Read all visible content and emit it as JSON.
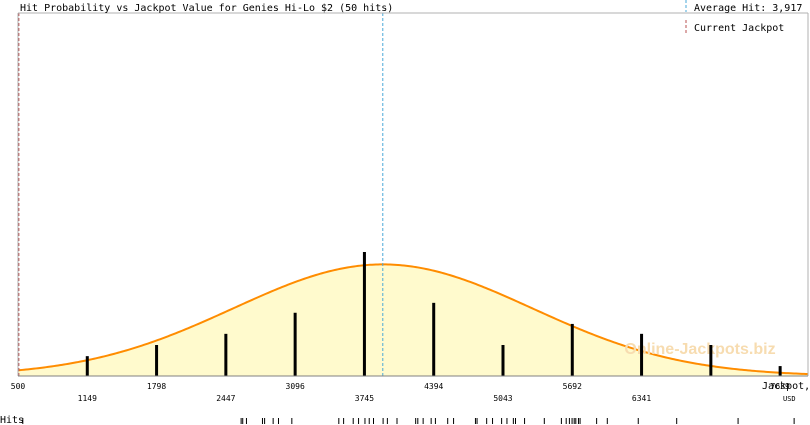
{
  "chart_data": {
    "type": "bar",
    "title": "Hit Probability vs Jackpot Value for Genies Hi-Lo $2 (50 hits)",
    "xlabel": "Jackpot,",
    "xlabel_unit": "USD",
    "x_axis_row_label": "Hits",
    "xlim": [
      500,
      7900
    ],
    "x_ticks_top": [
      500,
      1798,
      3096,
      4394,
      5692,
      7639
    ],
    "x_ticks_bottom": [
      1149,
      2447,
      3745,
      5043,
      6341
    ],
    "bars": [
      {
        "x": 1149,
        "value": 0.16
      },
      {
        "x": 1798,
        "value": 0.25
      },
      {
        "x": 2447,
        "value": 0.34
      },
      {
        "x": 3096,
        "value": 0.51
      },
      {
        "x": 3745,
        "value": 1.0
      },
      {
        "x": 4394,
        "value": 0.59
      },
      {
        "x": 5043,
        "value": 0.25
      },
      {
        "x": 5692,
        "value": 0.42
      },
      {
        "x": 6341,
        "value": 0.34
      },
      {
        "x": 6990,
        "value": 0.25
      },
      {
        "x": 7639,
        "value": 0.08
      }
    ],
    "curve": {
      "mean": 3917,
      "sd": 1400,
      "peak_relative_to_max_bar": 0.9
    },
    "average_hit": 3917,
    "current_jackpot": 508,
    "hits_x": [
      545,
      2590,
      2605,
      2640,
      2790,
      2810,
      2890,
      2940,
      3065,
      3505,
      3550,
      3640,
      3690,
      3750,
      3790,
      3830,
      3920,
      3960,
      4050,
      4225,
      4245,
      4295,
      4370,
      4410,
      4525,
      4580,
      4785,
      4800,
      4890,
      4945,
      5030,
      5080,
      5140,
      5160,
      5245,
      5430,
      5590,
      5635,
      5665,
      5690,
      5710,
      5725,
      5750,
      5765,
      5920,
      6020,
      6310,
      6670,
      7245,
      7770
    ],
    "colors": {
      "curve": "#ff8c00",
      "fill": "#fffacd",
      "bar": "#000000",
      "average_line": "#4aa8d8",
      "current_line": "#b85050",
      "watermark": "#f7dcb0"
    }
  },
  "legend": {
    "average_label": "Average Hit: 3,917",
    "current_label": "Current Jackpot"
  },
  "watermark": "Online-Jackpots.biz"
}
